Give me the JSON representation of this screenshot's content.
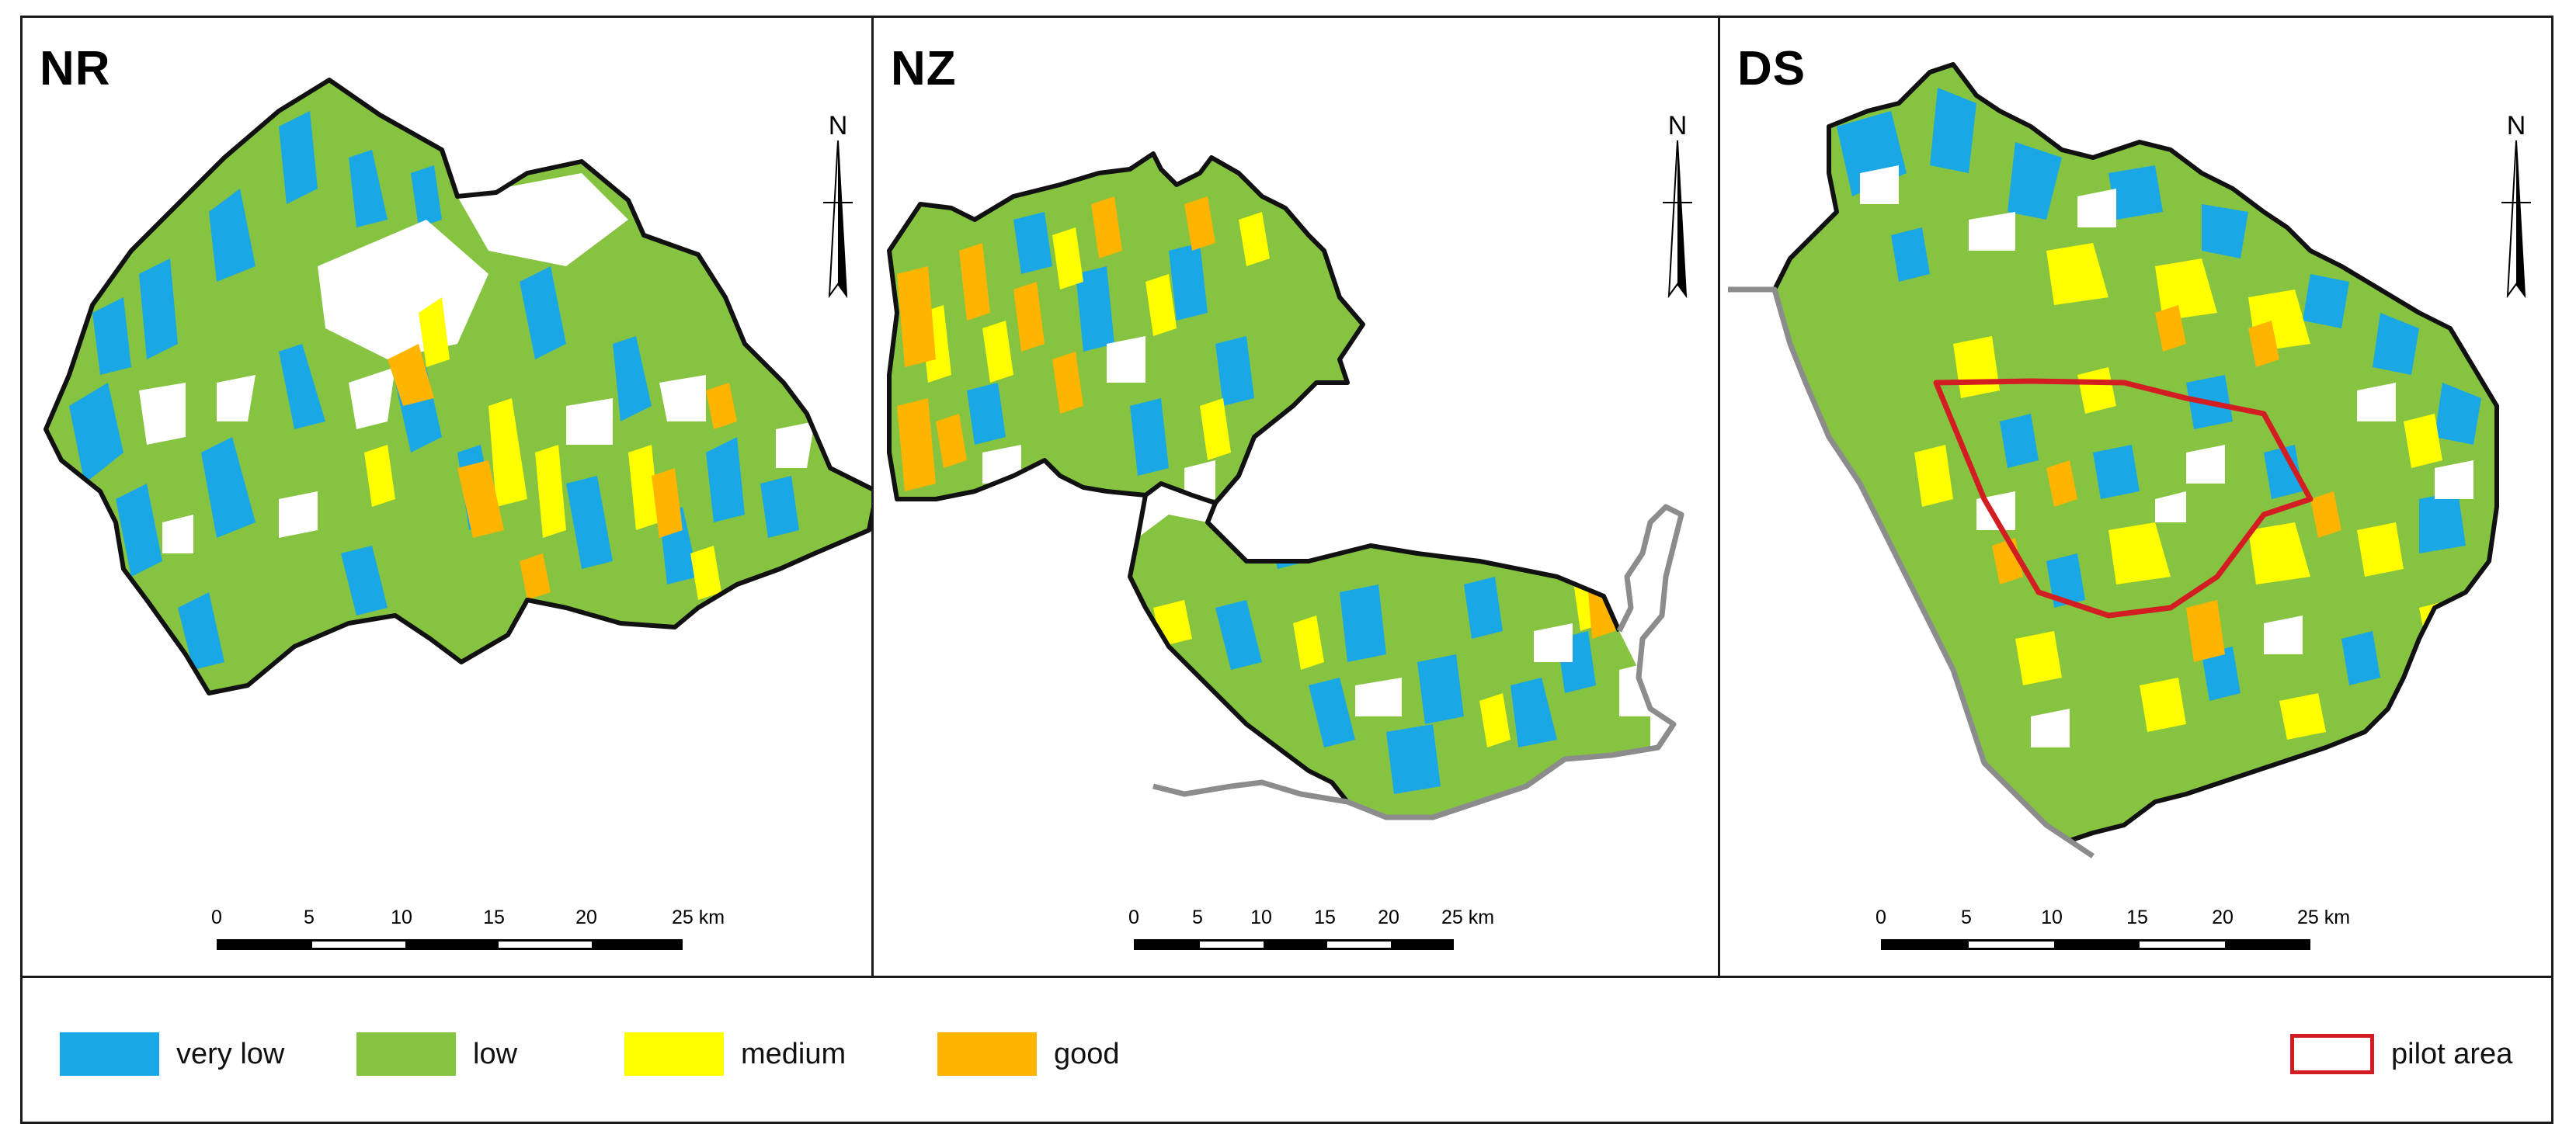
{
  "panels": [
    {
      "label": "NR"
    },
    {
      "label": "NZ"
    },
    {
      "label": "DS"
    }
  ],
  "north_arrow": {
    "letter": "N"
  },
  "scale_bar": {
    "ticks": [
      "0",
      "5",
      "10",
      "15",
      "20",
      "25 km"
    ]
  },
  "legend": {
    "classes": [
      {
        "label": "very low",
        "color": "#1aa7e6"
      },
      {
        "label": "low",
        "color": "#86c341"
      },
      {
        "label": "medium",
        "color": "#ffff00"
      },
      {
        "label": "good",
        "color": "#ffb400"
      }
    ],
    "pilot_area": {
      "label": "pilot area",
      "color": "#d21e23"
    }
  },
  "colors": {
    "very_low": "#1aa7e6",
    "low": "#86c341",
    "medium": "#ffff00",
    "good": "#ffb400",
    "boundary": "#111111",
    "river": "#8c8c8c",
    "pilot_area": "#d21e23"
  }
}
